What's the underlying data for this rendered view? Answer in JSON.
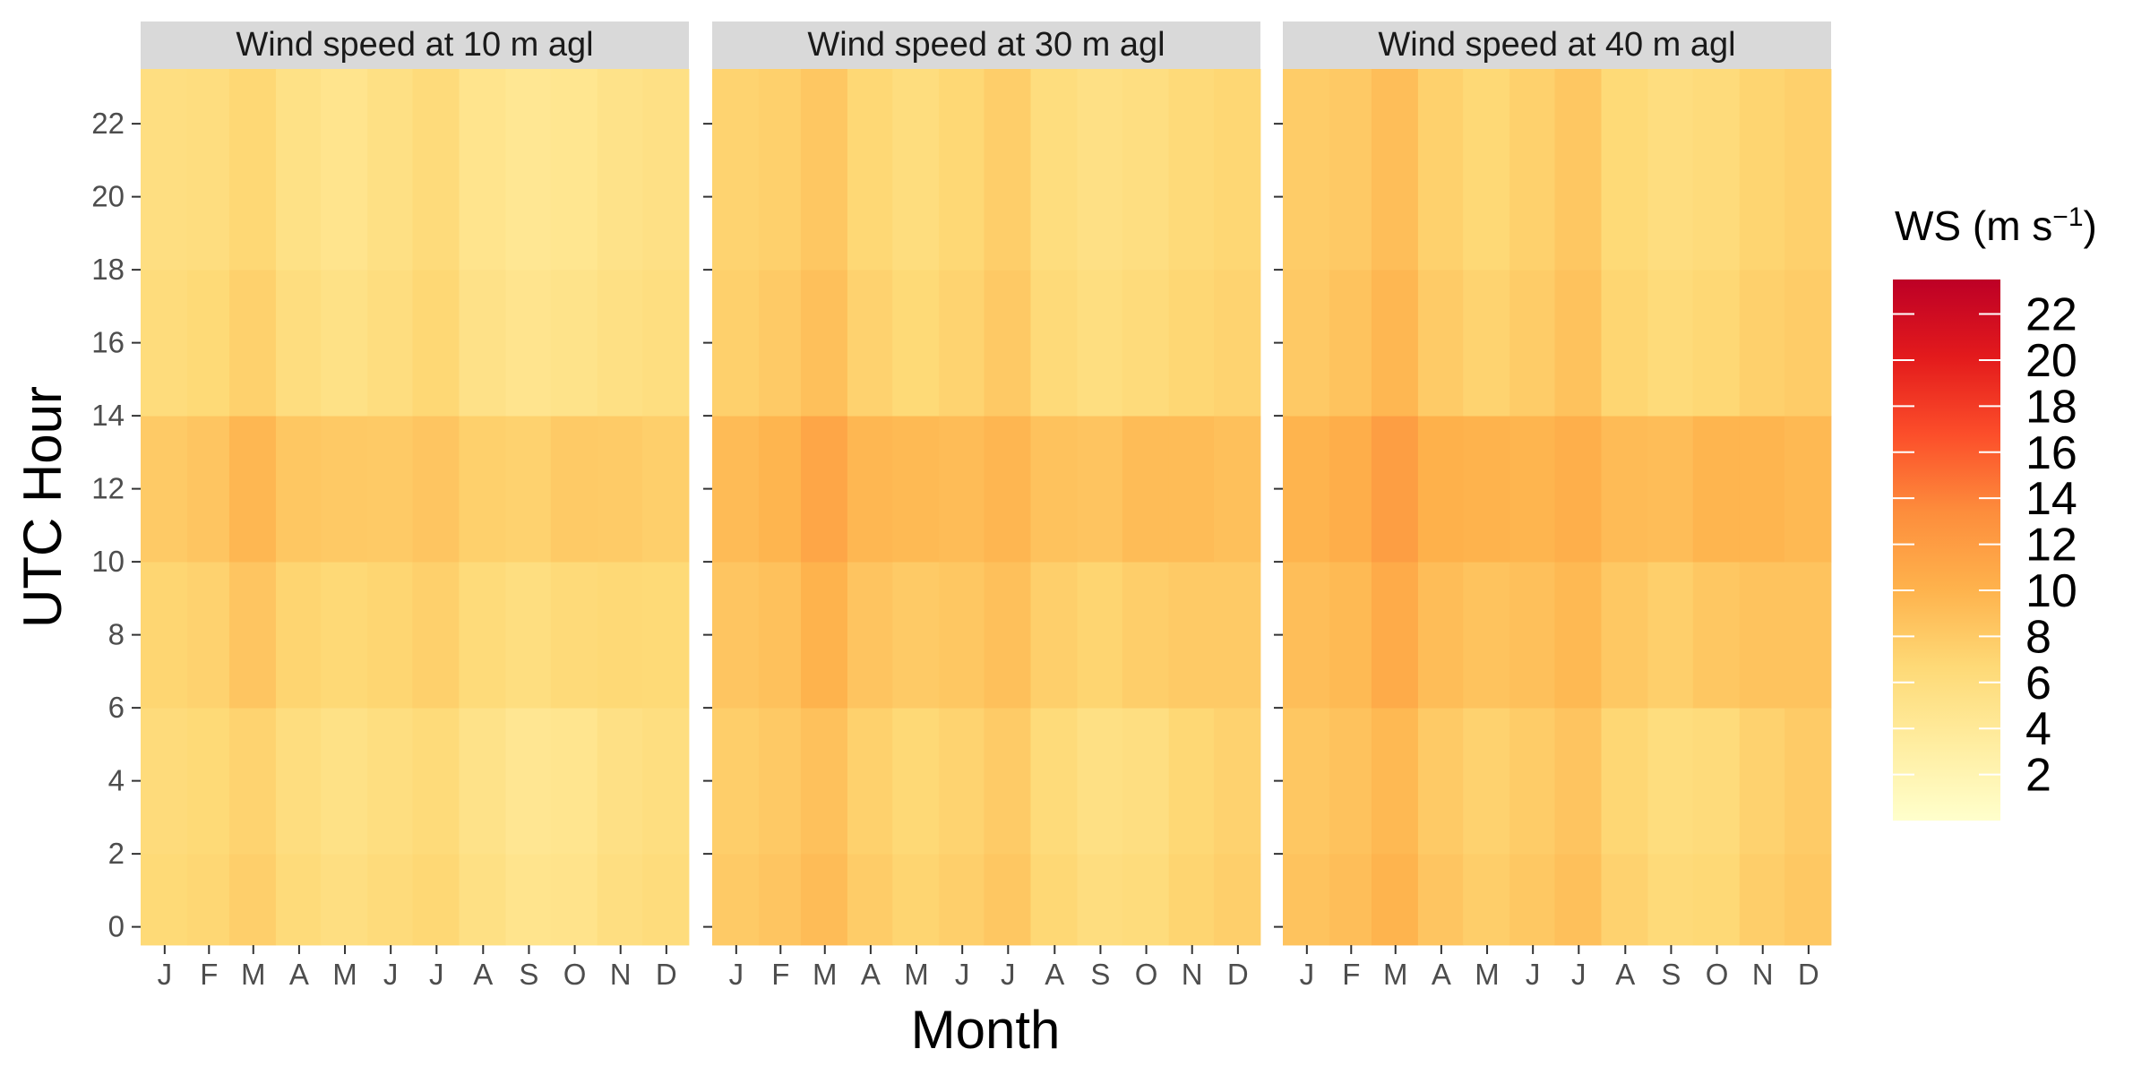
{
  "chart_data": {
    "type": "heatmap",
    "xlabel": "Month",
    "ylabel": "UTC Hour",
    "x_tick_labels": [
      "J",
      "F",
      "M",
      "A",
      "M",
      "J",
      "J",
      "A",
      "S",
      "O",
      "N",
      "D"
    ],
    "y_ticks": [
      0,
      2,
      4,
      6,
      8,
      10,
      12,
      14,
      16,
      18,
      20,
      22
    ],
    "ylim": [
      -0.5,
      23.5
    ],
    "x_domain_days": [
      1,
      365
    ],
    "grid": false,
    "facets": [
      {
        "title": "Wind speed at 10 m agl",
        "monthly_mean_ws_by_hour": [
          {
            "hour": 0,
            "values": [
              6.6,
              6.9,
              7.6,
              6.4,
              5.8,
              6.3,
              6.8,
              5.6,
              4.9,
              5.0,
              5.8,
              6.2
            ]
          },
          {
            "hour": 4,
            "values": [
              6.3,
              6.6,
              7.2,
              6.0,
              5.4,
              5.9,
              6.4,
              5.2,
              4.5,
              4.7,
              5.5,
              5.9
            ]
          },
          {
            "hour": 8,
            "values": [
              7.0,
              7.3,
              8.4,
              7.1,
              6.7,
              7.0,
              7.5,
              6.4,
              5.9,
              6.5,
              6.7,
              6.6
            ]
          },
          {
            "hour": 12,
            "values": [
              8.0,
              8.4,
              9.6,
              8.3,
              8.1,
              8.0,
              8.4,
              7.5,
              7.3,
              8.0,
              7.9,
              7.6
            ]
          },
          {
            "hour": 16,
            "values": [
              6.2,
              6.6,
              7.4,
              6.0,
              5.4,
              6.0,
              6.8,
              5.3,
              4.8,
              5.1,
              5.6,
              5.9
            ]
          },
          {
            "hour": 20,
            "values": [
              5.8,
              6.0,
              6.8,
              5.4,
              4.9,
              5.6,
              6.3,
              4.9,
              4.4,
              4.6,
              5.2,
              5.5
            ]
          }
        ]
      },
      {
        "title": "Wind speed at 30 m agl",
        "monthly_mean_ws_by_hour": [
          {
            "hour": 0,
            "values": [
              8.0,
              8.4,
              9.2,
              7.8,
              7.1,
              7.6,
              8.3,
              6.8,
              6.0,
              6.2,
              7.1,
              7.6
            ]
          },
          {
            "hour": 4,
            "values": [
              7.7,
              8.1,
              8.8,
              7.4,
              6.7,
              7.2,
              7.9,
              6.4,
              5.6,
              5.8,
              6.8,
              7.3
            ]
          },
          {
            "hour": 8,
            "values": [
              8.4,
              8.8,
              10.0,
              8.5,
              8.0,
              8.3,
              8.9,
              7.6,
              7.1,
              7.7,
              8.0,
              8.0
            ]
          },
          {
            "hour": 12,
            "values": [
              9.3,
              9.8,
              11.2,
              9.6,
              9.4,
              9.2,
              9.7,
              8.7,
              8.5,
              9.2,
              9.2,
              8.9
            ]
          },
          {
            "hour": 16,
            "values": [
              7.5,
              8.0,
              8.9,
              7.3,
              6.6,
              7.2,
              8.1,
              6.5,
              5.9,
              6.3,
              6.9,
              7.2
            ]
          },
          {
            "hour": 20,
            "values": [
              7.2,
              7.5,
              8.3,
              6.8,
              6.1,
              6.8,
              7.7,
              6.1,
              5.5,
              5.8,
              6.5,
              6.9
            ]
          }
        ]
      },
      {
        "title": "Wind speed at 40 m agl",
        "monthly_mean_ws_by_hour": [
          {
            "hour": 0,
            "values": [
              8.6,
              9.0,
              9.9,
              8.4,
              7.7,
              8.2,
              8.9,
              7.3,
              6.5,
              6.7,
              7.7,
              8.2
            ]
          },
          {
            "hour": 4,
            "values": [
              8.3,
              8.7,
              9.5,
              8.0,
              7.3,
              7.8,
              8.5,
              6.9,
              6.1,
              6.3,
              7.3,
              7.9
            ]
          },
          {
            "hour": 8,
            "values": [
              9.0,
              9.4,
              10.7,
              9.1,
              8.6,
              8.9,
              9.5,
              8.2,
              7.6,
              8.3,
              8.6,
              8.6
            ]
          },
          {
            "hour": 12,
            "values": [
              9.9,
              10.4,
              11.9,
              10.2,
              10.0,
              9.8,
              10.3,
              9.3,
              9.1,
              9.8,
              9.8,
              9.5
            ]
          },
          {
            "hour": 16,
            "values": [
              8.1,
              8.6,
              9.6,
              7.9,
              7.2,
              7.8,
              8.7,
              7.0,
              6.4,
              6.8,
              7.5,
              7.8
            ]
          },
          {
            "hour": 20,
            "values": [
              7.8,
              8.1,
              9.0,
              7.4,
              6.7,
              7.4,
              8.3,
              6.6,
              6.0,
              6.3,
              7.1,
              7.5
            ]
          }
        ]
      }
    ],
    "legend": {
      "title_text": "WS (m s",
      "title_superscript": "−1",
      "title_close": ")",
      "labels": [
        2,
        4,
        6,
        8,
        10,
        12,
        14,
        16,
        18,
        20,
        22
      ],
      "range": [
        0,
        23.5
      ],
      "colors": [
        "#ffffcc",
        "#ffeda0",
        "#fed976",
        "#feb24c",
        "#fd8d3c",
        "#fc4e2a",
        "#e31a1c",
        "#bd0026"
      ],
      "placement": "right"
    },
    "colors": {
      "strip_background": "#d9d9d9",
      "tick_color": "#333333",
      "missing_data": "#808080"
    }
  }
}
